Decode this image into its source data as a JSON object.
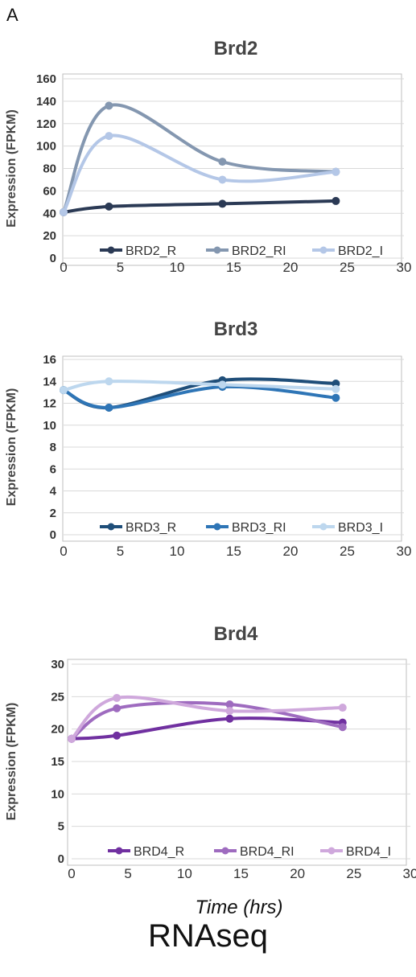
{
  "panel_letter": "A",
  "footer_caption": "RNAseq",
  "chart_data": [
    {
      "type": "line",
      "title": "Brd2",
      "ylabel": "Expression (FPKM)",
      "xlabel": "",
      "xlim": [
        0,
        30
      ],
      "ylim": [
        0,
        160
      ],
      "xticks": [
        "0",
        "5",
        "10",
        "15",
        "20",
        "25",
        "30"
      ],
      "yticks": [
        "0",
        "20",
        "40",
        "60",
        "80",
        "100",
        "120",
        "140",
        "160"
      ],
      "x": [
        0,
        4,
        14,
        24
      ],
      "grid": "horizontal",
      "legend_position": "bottom-inside",
      "series": [
        {
          "name": "BRD2_R",
          "color": "#2b3a55",
          "values": [
            41,
            46,
            48.5,
            51
          ]
        },
        {
          "name": "BRD2_RI",
          "color": "#8497b0",
          "values": [
            41,
            136,
            86,
            77
          ]
        },
        {
          "name": "BRD2_I",
          "color": "#b4c7e7",
          "values": [
            41,
            109,
            70,
            77
          ]
        }
      ]
    },
    {
      "type": "line",
      "title": "Brd3",
      "ylabel": "Expression (FPKM)",
      "xlabel": "",
      "xlim": [
        0,
        30
      ],
      "ylim": [
        0,
        16
      ],
      "xticks": [
        "0",
        "5",
        "10",
        "15",
        "20",
        "25",
        "30"
      ],
      "yticks": [
        "0",
        "2",
        "4",
        "6",
        "8",
        "10",
        "12",
        "14",
        "16"
      ],
      "x": [
        0,
        4,
        14,
        24
      ],
      "grid": "horizontal",
      "legend_position": "bottom-inside",
      "series": [
        {
          "name": "BRD3_R",
          "color": "#1f4e79",
          "values": [
            13.2,
            11.6,
            14.1,
            13.8
          ]
        },
        {
          "name": "BRD3_RI",
          "color": "#2e75b6",
          "values": [
            13.2,
            11.6,
            13.5,
            12.5
          ]
        },
        {
          "name": "BRD3_I",
          "color": "#bdd7ee",
          "values": [
            13.2,
            14.0,
            13.7,
            13.3
          ]
        }
      ]
    },
    {
      "type": "line",
      "title": "Brd4",
      "ylabel": "Expression (FPKM)",
      "xlabel": "Time (hrs)",
      "xlim": [
        0,
        30
      ],
      "ylim": [
        0,
        30
      ],
      "xticks": [
        "0",
        "5",
        "10",
        "15",
        "20",
        "25",
        "30"
      ],
      "yticks": [
        "0",
        "5",
        "10",
        "15",
        "20",
        "25",
        "30"
      ],
      "x": [
        0,
        4,
        14,
        24
      ],
      "grid": "horizontal",
      "legend_position": "bottom-inside",
      "series": [
        {
          "name": "BRD4_R",
          "color": "#7030a0",
          "values": [
            18.5,
            19.0,
            21.6,
            21.0
          ]
        },
        {
          "name": "BRD4_RI",
          "color": "#9e6bbf",
          "values": [
            18.5,
            23.2,
            23.8,
            20.3
          ]
        },
        {
          "name": "BRD4_I",
          "color": "#cfa8dc",
          "values": [
            18.5,
            24.8,
            22.8,
            23.3
          ]
        }
      ]
    }
  ]
}
